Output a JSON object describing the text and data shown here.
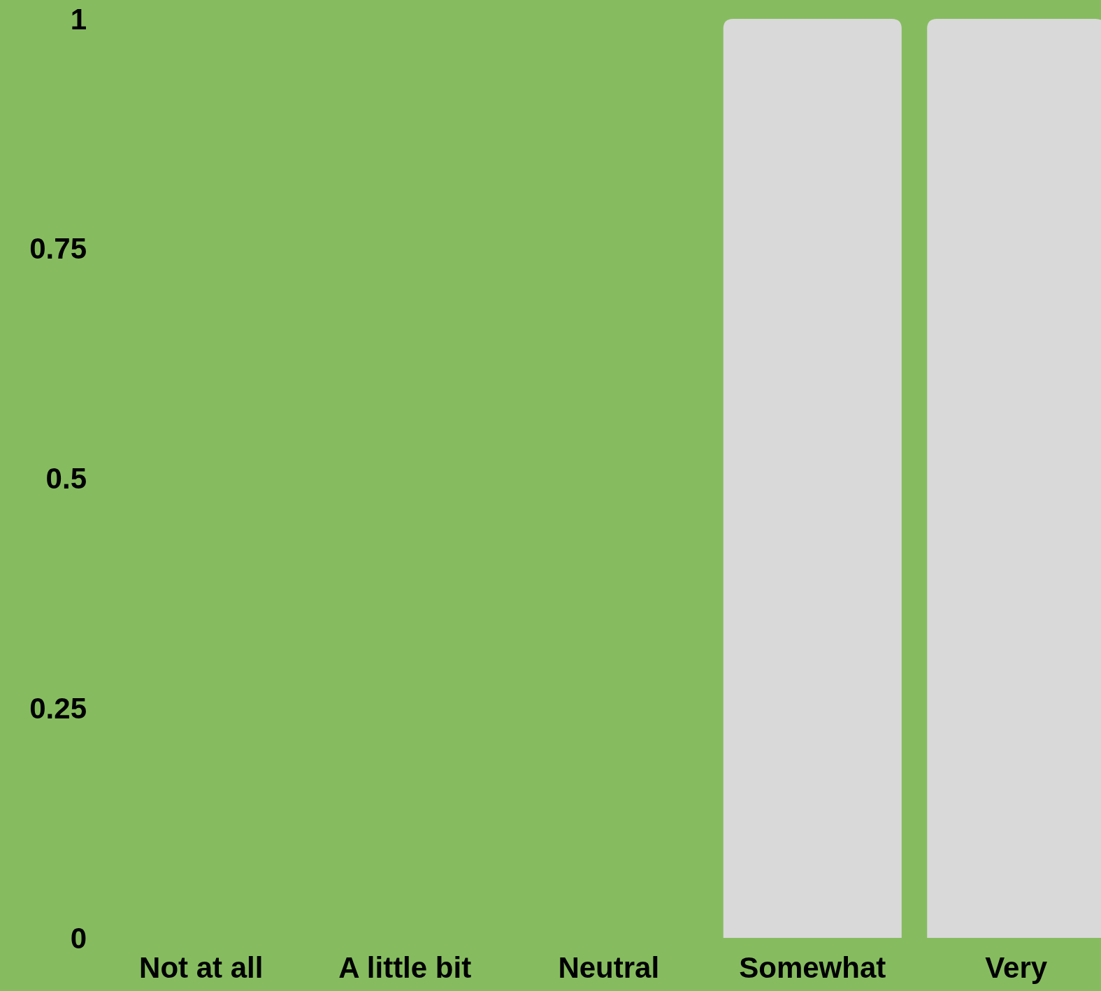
{
  "chart_data": {
    "type": "bar",
    "categories": [
      "Not at all",
      "A little bit",
      "Neutral",
      "Somewhat",
      "Very"
    ],
    "values": [
      0,
      0,
      0,
      1,
      1
    ],
    "color": "#d9d9d9",
    "ylim": [
      0,
      1
    ],
    "yticks": [
      0,
      0.25,
      0.5,
      0.75,
      1
    ],
    "grid": false
  }
}
